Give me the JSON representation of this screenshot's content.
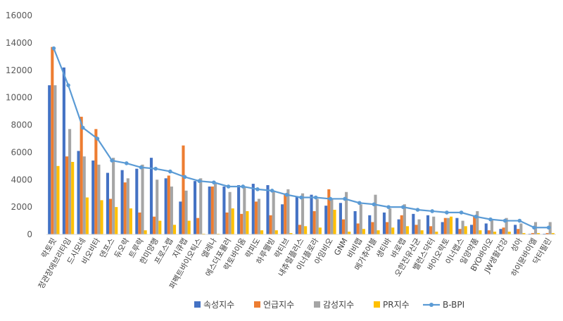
{
  "chart_data": {
    "type": "bar",
    "title": "",
    "xlabel": "",
    "ylabel": "",
    "ylim": [
      0,
      16000
    ],
    "yticks": [
      0,
      2000,
      4000,
      6000,
      8000,
      10000,
      12000,
      14000,
      16000
    ],
    "grid": false,
    "legend": "bottom",
    "categories": [
      "락토핏",
      "정관장에브리타임",
      "드시모네",
      "비오비타",
      "덴프스",
      "듀오락",
      "트루락",
      "한미양행",
      "프로스랩",
      "지큐랩",
      "퍼펙트바이오틱스",
      "엘레나",
      "에스더포뮬러",
      "락토바이옴",
      "락피도",
      "하루웰빙",
      "락티브",
      "내츄럴플러스",
      "이너플로라",
      "아임비오",
      "GNM",
      "비비랩",
      "메가츄어블",
      "생티바",
      "바로랩",
      "오한진유산균",
      "밸런스닥터",
      "바이오락토",
      "이너랩스",
      "일양약품",
      "BYO바이오",
      "JW생활건강",
      "성아",
      "하이뮨바이엘",
      "닥터필린"
    ],
    "series": [
      {
        "name": "속성지수",
        "type": "bar",
        "color": "#4472C4",
        "values": [
          10900,
          12200,
          6100,
          5400,
          4500,
          4700,
          4800,
          5600,
          4100,
          2400,
          3900,
          3500,
          3500,
          3600,
          3700,
          3600,
          2200,
          2800,
          2900,
          2100,
          2300,
          1700,
          1400,
          1600,
          1100,
          1500,
          1400,
          900,
          1200,
          700,
          800,
          400,
          700,
          50,
          50
        ]
      },
      {
        "name": "언급지수",
        "type": "bar",
        "color": "#ED7D31",
        "values": [
          13700,
          5700,
          8600,
          7700,
          2600,
          3800,
          1600,
          1300,
          4300,
          6500,
          1200,
          3500,
          1600,
          1500,
          2400,
          1400,
          3000,
          700,
          1700,
          3300,
          1100,
          800,
          900,
          900,
          1400,
          700,
          600,
          1200,
          400,
          1400,
          300,
          500,
          400,
          100,
          100
        ]
      },
      {
        "name": "감성지수",
        "type": "bar",
        "color": "#A5A5A5",
        "values": [
          10900,
          7700,
          5700,
          5100,
          5600,
          4100,
          5100,
          4000,
          3500,
          3200,
          4100,
          3700,
          3100,
          3500,
          2600,
          3200,
          3300,
          3000,
          2600,
          2600,
          3100,
          2200,
          2900,
          1900,
          2200,
          1100,
          1300,
          1200,
          1000,
          1700,
          1100,
          1200,
          800,
          900,
          900
        ]
      },
      {
        "name": "PR지수",
        "type": "bar",
        "color": "#FFC000",
        "values": [
          5000,
          5300,
          2700,
          2500,
          2000,
          1900,
          300,
          1000,
          700,
          1000,
          50,
          50,
          1900,
          1700,
          300,
          300,
          100,
          600,
          500,
          1800,
          200,
          400,
          300,
          500,
          600,
          300,
          200,
          1300,
          600,
          300,
          200,
          200,
          100,
          100,
          100
        ]
      },
      {
        "name": "B-BPI",
        "type": "line",
        "color": "#5B9BD5",
        "values": [
          13600,
          10900,
          7800,
          7000,
          5400,
          5200,
          4900,
          4800,
          4600,
          4200,
          3900,
          3800,
          3500,
          3500,
          3300,
          3200,
          2900,
          2700,
          2700,
          2600,
          2600,
          2300,
          2200,
          2000,
          2000,
          1800,
          1700,
          1600,
          1600,
          1300,
          1100,
          1000,
          1000,
          500,
          500
        ]
      }
    ]
  }
}
